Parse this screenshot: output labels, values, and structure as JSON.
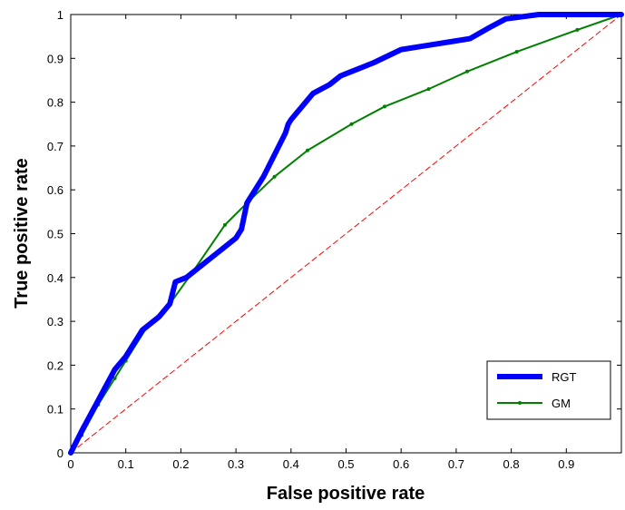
{
  "chart_data": {
    "type": "line",
    "title": "",
    "xlabel": "False positive rate",
    "ylabel": "True positive rate",
    "xlim": [
      0,
      1
    ],
    "ylim": [
      0,
      1
    ],
    "xticks": [
      "0",
      "0.1",
      "0.2",
      "0.3",
      "0.4",
      "0.5",
      "0.6",
      "0.7",
      "0.8",
      "0.9"
    ],
    "yticks": [
      "0",
      "0.1",
      "0.2",
      "0.3",
      "0.4",
      "0.5",
      "0.6",
      "0.7",
      "0.8",
      "0.9",
      "1"
    ],
    "xtick_values": [
      0,
      0.1,
      0.2,
      0.3,
      0.4,
      0.5,
      0.6,
      0.7,
      0.8,
      0.9
    ],
    "ytick_values": [
      0,
      0.1,
      0.2,
      0.3,
      0.4,
      0.5,
      0.6,
      0.7,
      0.8,
      0.9,
      1
    ],
    "grid": false,
    "legend_position": "bottom-right",
    "series": [
      {
        "name": "RGT",
        "color": "#0000ff",
        "x": [
          0.0,
          0.02,
          0.05,
          0.08,
          0.1,
          0.13,
          0.16,
          0.18,
          0.19,
          0.21,
          0.24,
          0.27,
          0.3,
          0.31,
          0.32,
          0.35,
          0.37,
          0.39,
          0.395,
          0.4,
          0.42,
          0.44,
          0.47,
          0.49,
          0.51,
          0.55,
          0.6,
          0.65,
          0.7,
          0.725,
          0.76,
          0.79,
          0.85,
          1.0
        ],
        "y": [
          0.0,
          0.05,
          0.12,
          0.19,
          0.22,
          0.28,
          0.31,
          0.34,
          0.39,
          0.4,
          0.43,
          0.46,
          0.49,
          0.51,
          0.57,
          0.63,
          0.68,
          0.73,
          0.75,
          0.76,
          0.79,
          0.82,
          0.84,
          0.86,
          0.87,
          0.89,
          0.92,
          0.93,
          0.94,
          0.945,
          0.97,
          0.99,
          1.0,
          1.0
        ]
      },
      {
        "name": "GM",
        "color": "#008000",
        "x": [
          0.0,
          0.02,
          0.05,
          0.08,
          0.1,
          0.14,
          0.18,
          0.22,
          0.28,
          0.32,
          0.37,
          0.43,
          0.51,
          0.57,
          0.65,
          0.72,
          0.81,
          0.92,
          1.0
        ],
        "y": [
          0.0,
          0.04,
          0.11,
          0.17,
          0.21,
          0.29,
          0.34,
          0.41,
          0.52,
          0.57,
          0.63,
          0.69,
          0.75,
          0.79,
          0.83,
          0.87,
          0.915,
          0.965,
          1.0
        ]
      },
      {
        "color": "#ff0000",
        "dashed": true,
        "x": [
          0,
          1
        ],
        "y": [
          0,
          1
        ]
      }
    ]
  }
}
